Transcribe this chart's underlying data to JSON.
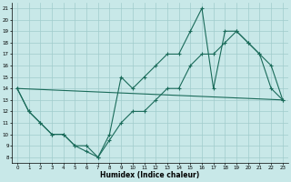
{
  "title": "",
  "xlabel": "Humidex (Indice chaleur)",
  "ylabel": "",
  "xlim": [
    -0.5,
    23.5
  ],
  "ylim": [
    7.5,
    21.5
  ],
  "yticks": [
    8,
    9,
    10,
    11,
    12,
    13,
    14,
    15,
    16,
    17,
    18,
    19,
    20,
    21
  ],
  "xticks": [
    0,
    1,
    2,
    3,
    4,
    5,
    6,
    7,
    8,
    9,
    10,
    11,
    12,
    13,
    14,
    15,
    16,
    17,
    18,
    19,
    20,
    21,
    22,
    23
  ],
  "bg_color": "#c8e8e8",
  "grid_color": "#a0cccc",
  "line_color": "#1a6b5a",
  "lines": [
    {
      "x": [
        0,
        1,
        2,
        3,
        4,
        5,
        6,
        7,
        8,
        9,
        10,
        11,
        12,
        13,
        14,
        15,
        16,
        17,
        18,
        19,
        20,
        21,
        22,
        23
      ],
      "y": [
        14,
        12,
        11,
        10,
        10,
        9,
        9,
        8,
        10,
        15,
        14,
        15,
        16,
        17,
        17,
        19,
        21,
        14,
        19,
        19,
        18,
        17,
        14,
        13
      ]
    },
    {
      "x": [
        0,
        1,
        2,
        3,
        4,
        5,
        6,
        7,
        8,
        9,
        10,
        11,
        12,
        13,
        14,
        15,
        16,
        17,
        18,
        19,
        20,
        21,
        22,
        23
      ],
      "y": [
        14,
        12,
        11,
        10,
        10,
        9,
        8.5,
        8,
        9.5,
        11,
        12,
        12,
        13,
        14,
        14,
        16,
        17,
        17,
        18,
        19,
        18,
        17,
        16,
        13
      ]
    },
    {
      "x": [
        0,
        23
      ],
      "y": [
        14,
        13
      ]
    }
  ],
  "marker": "+",
  "markersize": 3,
  "linewidth": 0.8,
  "tick_fontsize": 4.0,
  "xlabel_fontsize": 5.5
}
